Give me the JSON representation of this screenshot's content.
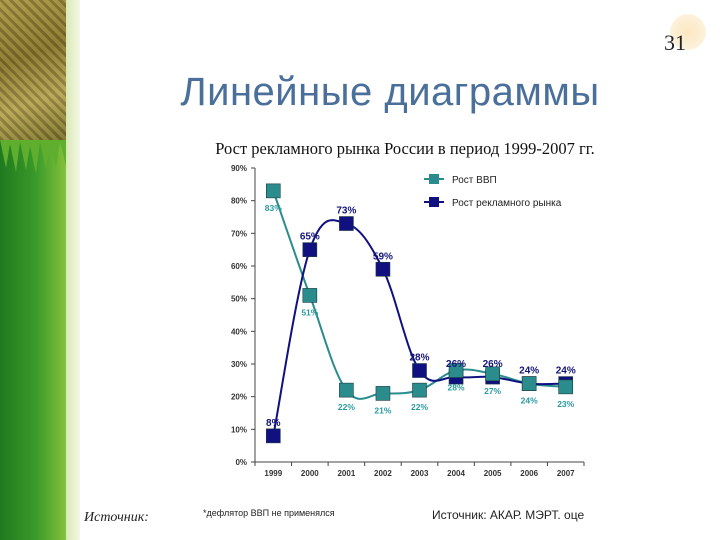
{
  "slide": {
    "page_number": "31",
    "title": "Линейные диаграммы",
    "subtitle": "Рост рекламного рынка России в период 1999-2007 гг.",
    "source_left": "Источник:",
    "footnote": "*дефлятор ВВП не применялся",
    "source_right": "Источник: АКАР. МЭРТ. оце"
  },
  "colors": {
    "gdp": "#2a8c8c",
    "ad": "#101080",
    "gdp_label": "#2a9aa0",
    "ad_label": "#14147a"
  },
  "chart_data": {
    "type": "line",
    "title": "",
    "categories": [
      "1999",
      "2000",
      "2001",
      "2002",
      "2003",
      "2004",
      "2005",
      "2006",
      "2007"
    ],
    "yticks": [
      "0%",
      "10%",
      "20%",
      "30%",
      "40%",
      "50%",
      "60%",
      "70%",
      "80%",
      "90%"
    ],
    "ylim": [
      0,
      90
    ],
    "legend_position": "top-right",
    "series": [
      {
        "name": "Рост ВВП",
        "values": [
          83,
          51,
          22,
          21,
          22,
          28,
          27,
          24,
          23
        ],
        "labels": [
          "83%",
          "51%",
          "22%",
          "21%",
          "22%",
          "28%",
          "27%",
          "24%",
          "23%"
        ]
      },
      {
        "name": "Рост рекламного рынка",
        "values": [
          8,
          65,
          73,
          59,
          28,
          26,
          26,
          24,
          24
        ],
        "labels": [
          "8%",
          "65%",
          "73%",
          "59%",
          "28%",
          "26%",
          "26%",
          "24%",
          "24%"
        ]
      }
    ]
  }
}
